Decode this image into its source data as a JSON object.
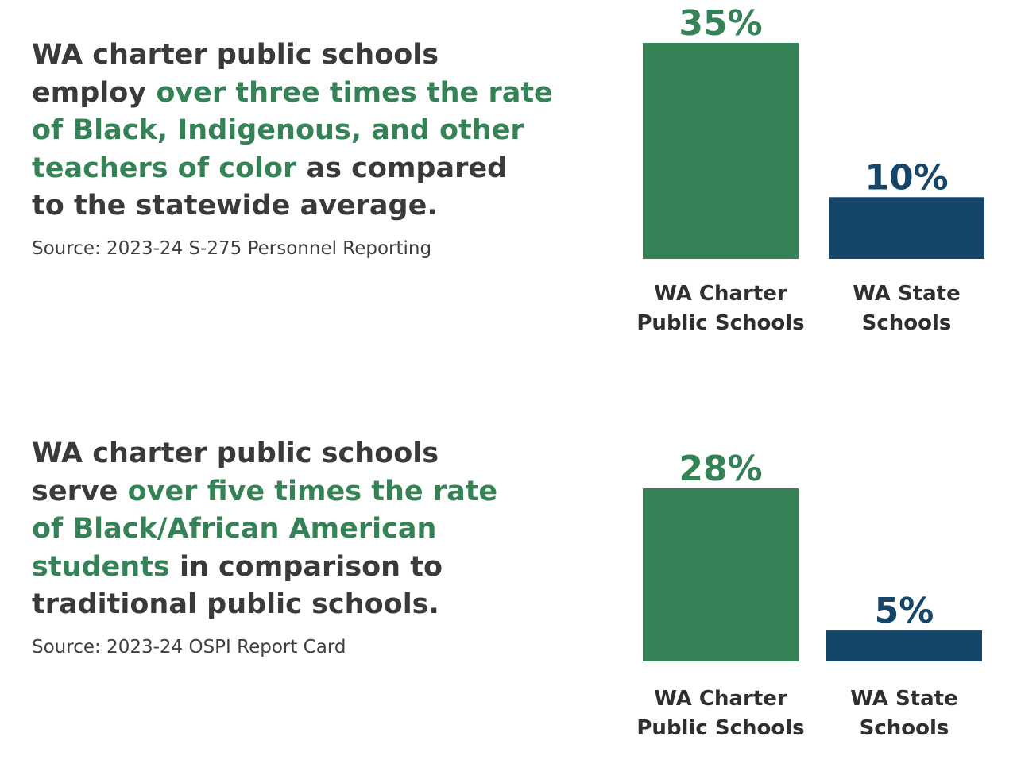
{
  "panels": [
    {
      "statement": {
        "line1": "WA charter public schools",
        "line2_plain": "employ ",
        "line2_highlight": "over three times the rate",
        "line3_highlight": "of Black, Indigenous, and other",
        "line4_highlight": "teachers of color",
        "line4_plain": " as compared",
        "line5": "to the statewide average."
      },
      "source": "Source: 2023-24 S-275 Personnel Reporting"
    },
    {
      "statement": {
        "line1": "WA charter public schools",
        "line2_plain": "serve ",
        "line2_highlight": "over five times the rate",
        "line3_highlight": "of Black/African American",
        "line4_highlight": "students",
        "line4_plain": " in comparison to",
        "line5": "traditional public schools."
      },
      "source": "Source: 2023-24 OSPI Report Card"
    }
  ],
  "colors": {
    "highlight": "#348255",
    "text": "#3a3a3a",
    "charter_bar": "#348255",
    "state_bar": "#15466a"
  },
  "chart_data": [
    {
      "type": "bar",
      "categories": [
        [
          "WA Charter",
          "Public Schools"
        ],
        [
          "WA State",
          "Schools"
        ]
      ],
      "values": [
        35,
        10
      ],
      "value_labels": [
        "35%",
        "10%"
      ],
      "unit": "%",
      "bar_colors": [
        "#348255",
        "#15466a"
      ],
      "ylim": [
        0,
        35
      ],
      "grid": false,
      "legend": "none"
    },
    {
      "type": "bar",
      "categories": [
        [
          "WA Charter",
          "Public Schools"
        ],
        [
          "WA State",
          "Schools"
        ]
      ],
      "values": [
        28,
        5
      ],
      "value_labels": [
        "28%",
        "5%"
      ],
      "unit": "%",
      "bar_colors": [
        "#348255",
        "#15466a"
      ],
      "ylim": [
        0,
        28
      ],
      "grid": false,
      "legend": "none"
    }
  ]
}
